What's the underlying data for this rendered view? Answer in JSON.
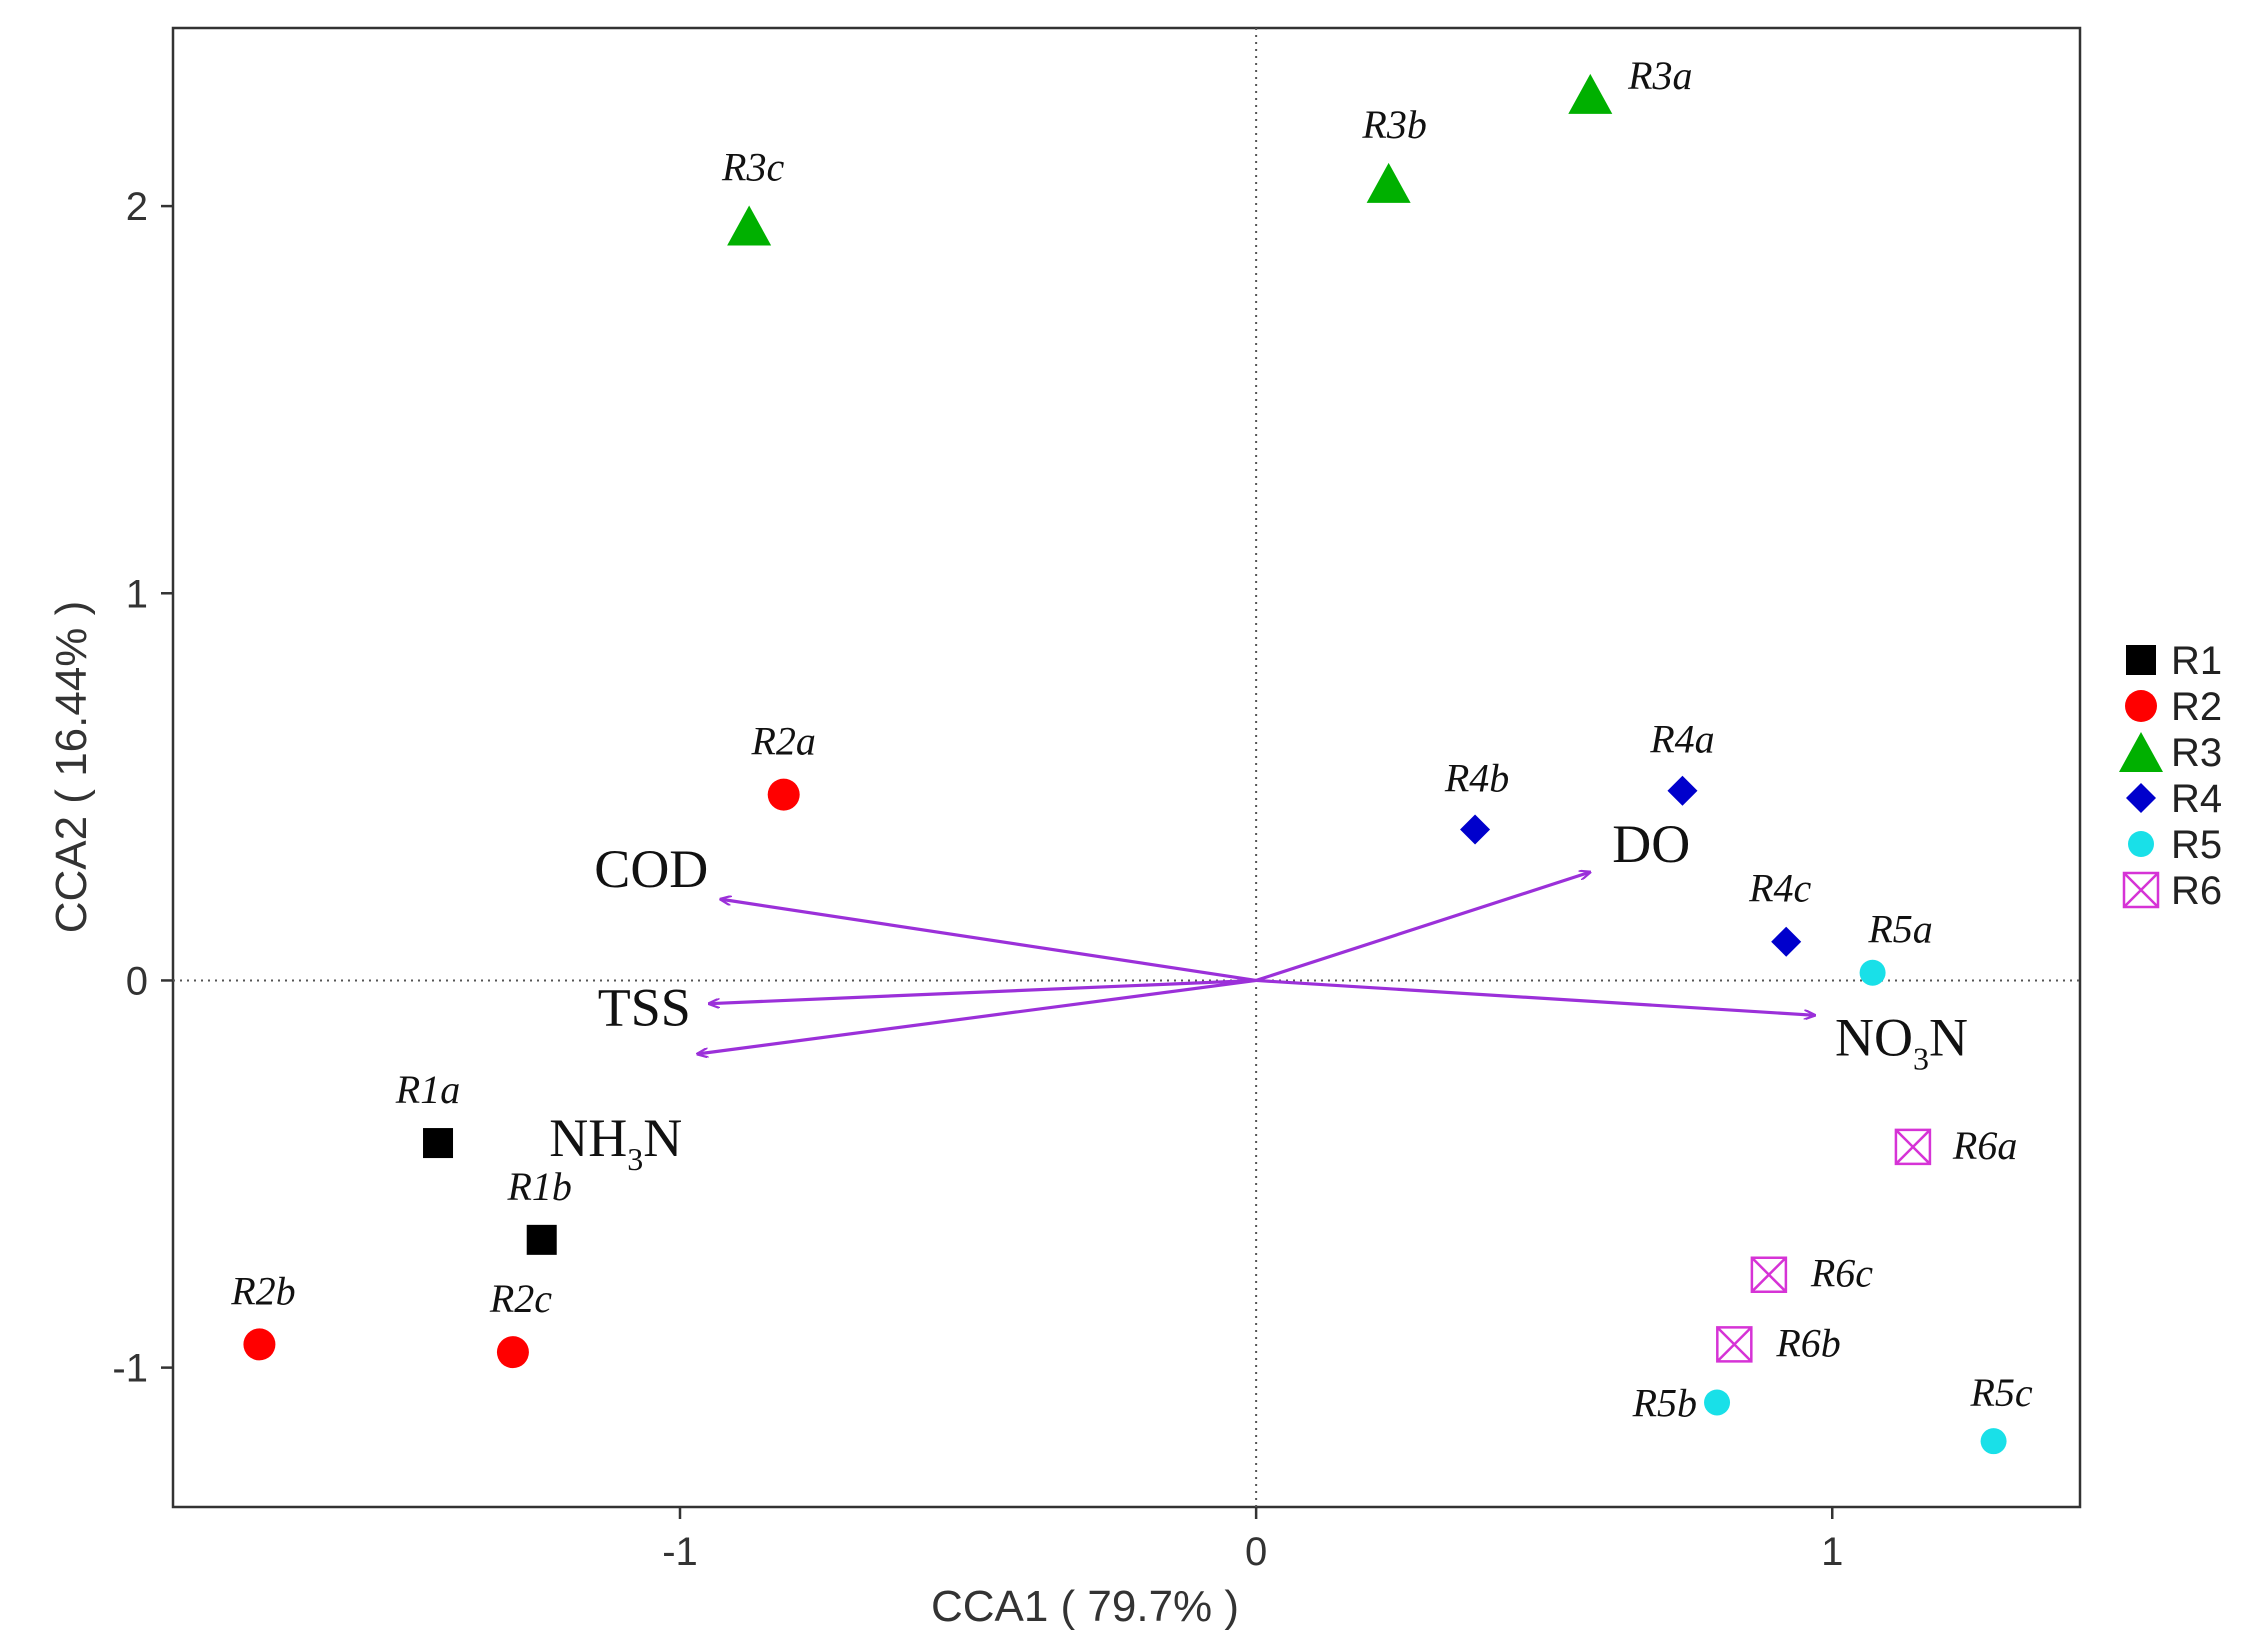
{
  "chart_data": {
    "type": "scatter",
    "xlabel": "CCA1 ( 79.7% )",
    "ylabel": "CCA2 ( 16.44% )",
    "xlim": [
      -1.88,
      1.43
    ],
    "ylim": [
      -1.36,
      2.46
    ],
    "xticks": [
      {
        "value": -1,
        "label": "-1"
      },
      {
        "value": 0,
        "label": "0"
      },
      {
        "value": 1,
        "label": "1"
      }
    ],
    "yticks": [
      {
        "value": -1,
        "label": "-1"
      },
      {
        "value": 0,
        "label": "0"
      },
      {
        "value": 1,
        "label": "1"
      },
      {
        "value": 2,
        "label": "2"
      }
    ],
    "reference_lines": {
      "x": 0,
      "y": 0,
      "style": "dotted"
    },
    "legend_position": "right",
    "series": [
      {
        "name": "R1",
        "marker": "square",
        "color": "#000000",
        "points": [
          {
            "label": "R1a",
            "x": -1.42,
            "y": -0.42,
            "italic": false
          },
          {
            "label": "R1b",
            "x": -1.24,
            "y": -0.67,
            "italic": true
          }
        ]
      },
      {
        "name": "R2",
        "marker": "circle",
        "color": "#ff0000",
        "points": [
          {
            "label": "R2a",
            "x": -0.82,
            "y": 0.48,
            "italic": true
          },
          {
            "label": "R2b",
            "x": -1.73,
            "y": -0.94,
            "italic": true
          },
          {
            "label": "R2c",
            "x": -1.29,
            "y": -0.96,
            "italic": true
          }
        ]
      },
      {
        "name": "R3",
        "marker": "triangle",
        "color": "#00b000",
        "points": [
          {
            "label": "R3a",
            "x": 0.58,
            "y": 2.29,
            "italic": true
          },
          {
            "label": "R3b",
            "x": 0.23,
            "y": 2.06,
            "italic": true
          },
          {
            "label": "R3c",
            "x": -0.88,
            "y": 1.95,
            "italic": true
          }
        ]
      },
      {
        "name": "R4",
        "marker": "diamond",
        "color": "#0000cc",
        "points": [
          {
            "label": "R4a",
            "x": 0.74,
            "y": 0.49,
            "italic": true
          },
          {
            "label": "R4b",
            "x": 0.38,
            "y": 0.39,
            "italic": true
          },
          {
            "label": "R4c",
            "x": 0.92,
            "y": 0.1,
            "italic": true
          }
        ]
      },
      {
        "name": "R5",
        "marker": "circle",
        "color": "#19e0e8",
        "points": [
          {
            "label": "R5a",
            "x": 1.07,
            "y": 0.02,
            "italic": true
          },
          {
            "label": "R5b",
            "x": 0.8,
            "y": -1.09,
            "italic": true
          },
          {
            "label": "R5c",
            "x": 1.28,
            "y": -1.19,
            "italic": true
          }
        ]
      },
      {
        "name": "R6",
        "marker": "crossed-square",
        "color": "#d633d6",
        "points": [
          {
            "label": "R6a",
            "x": 1.14,
            "y": -0.43,
            "italic": true
          },
          {
            "label": "R6b",
            "x": 0.83,
            "y": -0.94,
            "italic": true
          },
          {
            "label": "R6c",
            "x": 0.89,
            "y": -0.76,
            "italic": true
          }
        ]
      }
    ],
    "env_vectors": {
      "color": "#9b30d9",
      "items": [
        {
          "name": "COD",
          "x": -0.93,
          "y": 0.21,
          "sub": null
        },
        {
          "name": "TSS",
          "x": -0.95,
          "y": -0.06,
          "sub": null
        },
        {
          "name": "NH3N",
          "x": -0.97,
          "y": -0.19,
          "sub": {
            "before": "NH",
            "digit": "3",
            "after": "N"
          }
        },
        {
          "name": "DO",
          "x": 0.58,
          "y": 0.28,
          "sub": null
        },
        {
          "name": "NO3N",
          "x": 0.97,
          "y": -0.09,
          "sub": {
            "before": "NO",
            "digit": "3",
            "after": "N"
          }
        }
      ]
    }
  }
}
